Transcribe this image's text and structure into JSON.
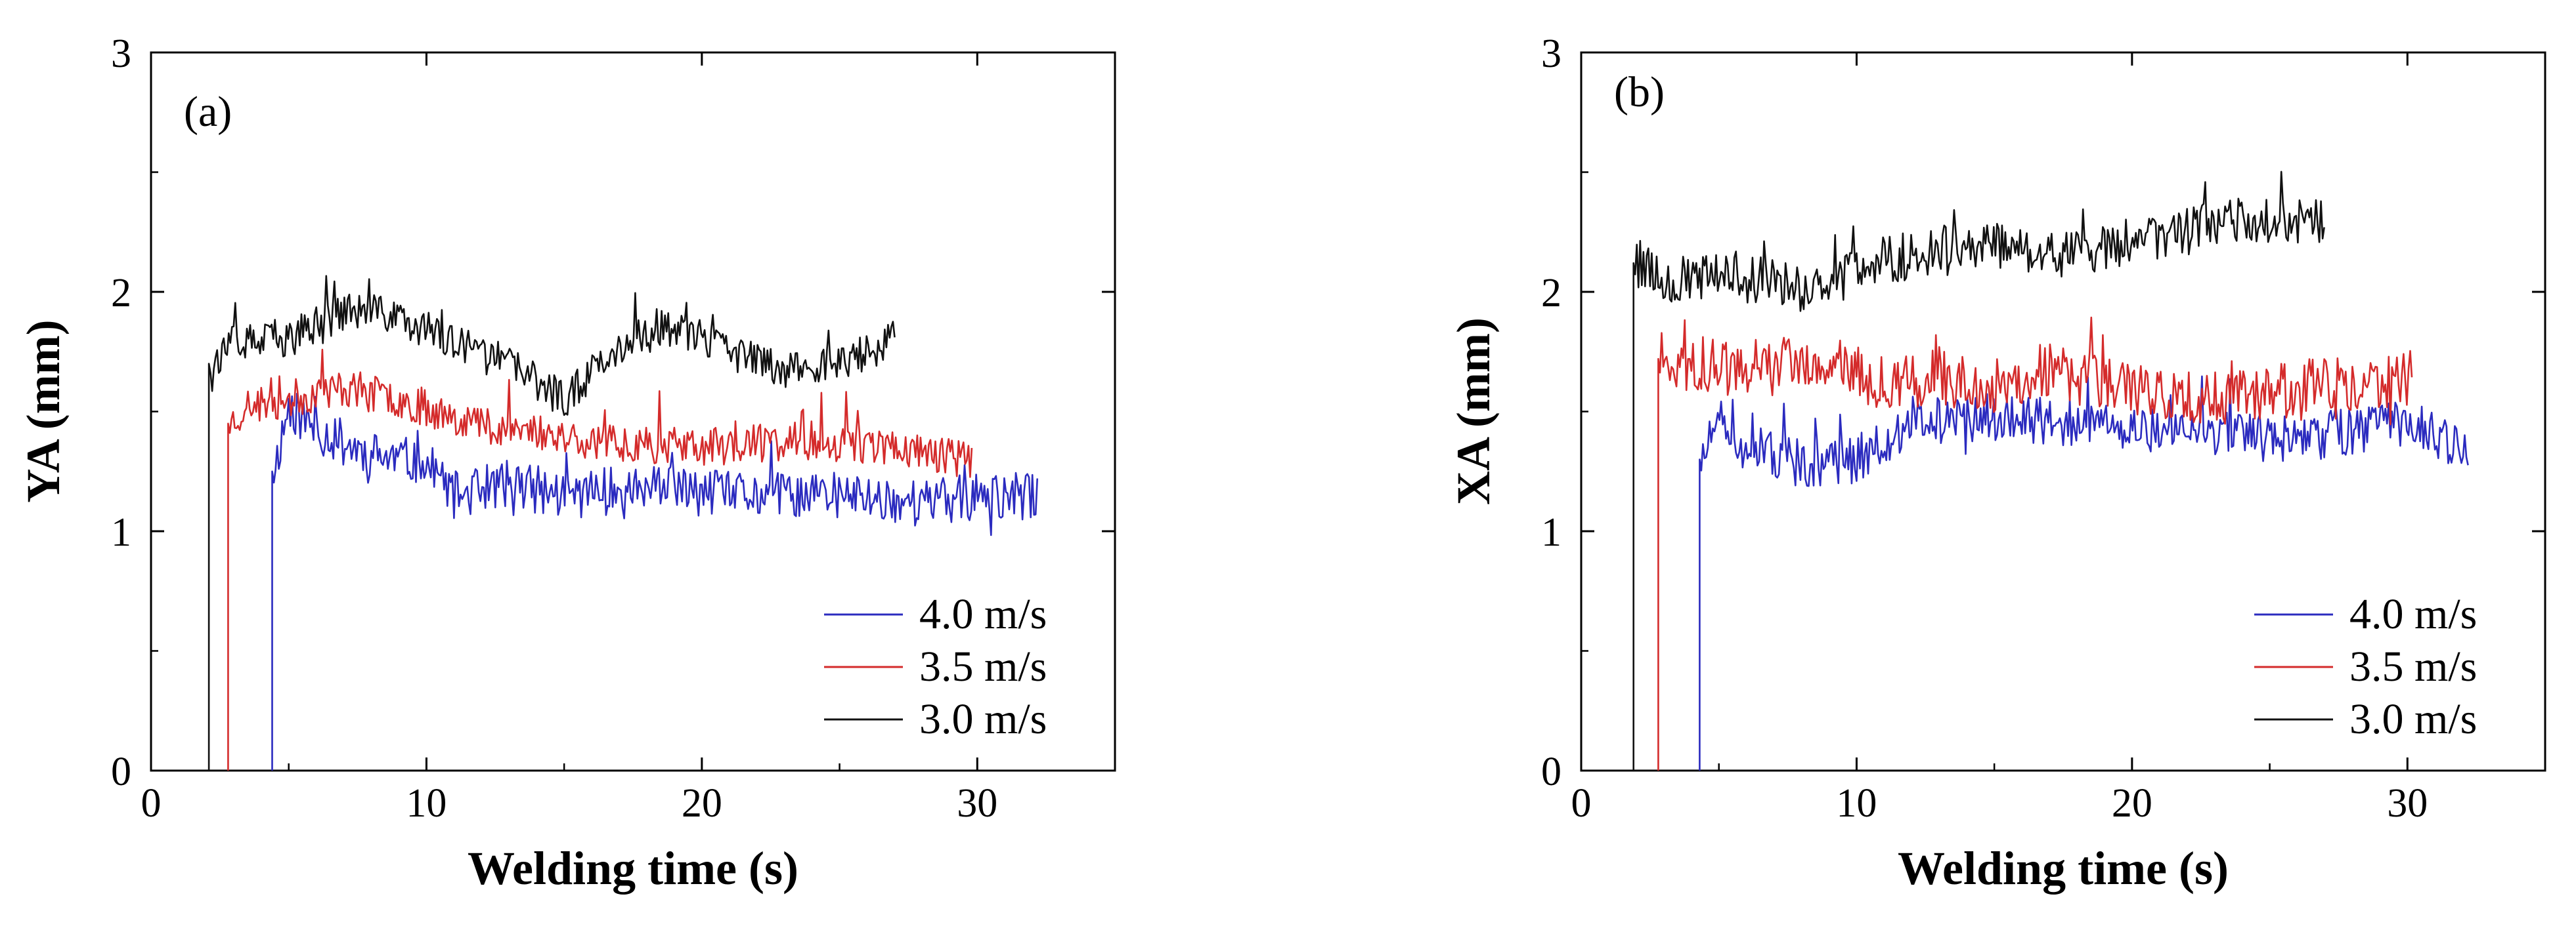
{
  "chart_data": [
    {
      "type": "line",
      "panel_label": "(a)",
      "xlabel": "Welding time (s)",
      "ylabel": "YA  (mm)",
      "xlim": [
        0,
        35
      ],
      "ylim": [
        0,
        3
      ],
      "xticks": [
        0,
        10,
        20,
        30
      ],
      "yticks": [
        0,
        1,
        2,
        3
      ],
      "grid": false,
      "legend_position": "lower-right",
      "series": [
        {
          "name": "4.0 m/s",
          "color": "#2b2bbf",
          "start": 4.4,
          "end": 32.2,
          "base": 1.2,
          "noise": 0.1,
          "seed": 11,
          "key": [
            [
              4.45,
              1.25
            ],
            [
              5,
              1.52
            ],
            [
              6,
              1.42
            ],
            [
              8,
              1.32
            ],
            [
              10,
              1.28
            ],
            [
              11,
              1.15
            ],
            [
              13,
              1.2
            ],
            [
              15,
              1.15
            ],
            [
              18,
              1.18
            ],
            [
              21,
              1.15
            ],
            [
              25,
              1.15
            ],
            [
              28,
              1.12
            ],
            [
              32.2,
              1.15
            ]
          ]
        },
        {
          "name": "3.5 m/s",
          "color": "#d42b2b",
          "start": 2.8,
          "end": 29.8,
          "base": 1.4,
          "noise": 0.08,
          "seed": 23,
          "key": [
            [
              2.85,
              1.45
            ],
            [
              3.5,
              1.52
            ],
            [
              5,
              1.55
            ],
            [
              7,
              1.6
            ],
            [
              9,
              1.55
            ],
            [
              12,
              1.45
            ],
            [
              16,
              1.38
            ],
            [
              20,
              1.35
            ],
            [
              24,
              1.38
            ],
            [
              27,
              1.35
            ],
            [
              29.8,
              1.3
            ]
          ]
        },
        {
          "name": "3.0 m/s",
          "color": "#111111",
          "start": 2.1,
          "end": 27.0,
          "base": 1.8,
          "noise": 0.08,
          "seed": 37,
          "key": [
            [
              2.15,
              1.7
            ],
            [
              3,
              1.78
            ],
            [
              5,
              1.8
            ],
            [
              7,
              1.92
            ],
            [
              9,
              1.9
            ],
            [
              11,
              1.78
            ],
            [
              13,
              1.7
            ],
            [
              15,
              1.55
            ],
            [
              17,
              1.78
            ],
            [
              19,
              1.85
            ],
            [
              21,
              1.75
            ],
            [
              23,
              1.68
            ],
            [
              25,
              1.7
            ],
            [
              27,
              1.8
            ]
          ]
        }
      ]
    },
    {
      "type": "line",
      "panel_label": "(b)",
      "xlabel": "Welding time (s)",
      "ylabel": "XA  (mm)",
      "xlim": [
        0,
        35
      ],
      "ylim": [
        0,
        3
      ],
      "xticks": [
        0,
        10,
        20,
        30
      ],
      "yticks": [
        0,
        1,
        2,
        3
      ],
      "grid": false,
      "legend_position": "lower-right",
      "series": [
        {
          "name": "4.0 m/s",
          "color": "#2b2bbf",
          "start": 4.3,
          "end": 32.2,
          "base": 1.35,
          "noise": 0.1,
          "seed": 51,
          "key": [
            [
              4.35,
              1.3
            ],
            [
              5,
              1.45
            ],
            [
              6,
              1.35
            ],
            [
              8,
              1.28
            ],
            [
              10,
              1.3
            ],
            [
              12,
              1.45
            ],
            [
              15,
              1.48
            ],
            [
              18,
              1.45
            ],
            [
              20,
              1.42
            ],
            [
              23,
              1.4
            ],
            [
              26,
              1.38
            ],
            [
              28,
              1.42
            ],
            [
              30,
              1.45
            ],
            [
              32.2,
              1.35
            ]
          ]
        },
        {
          "name": "3.5 m/s",
          "color": "#d42b2b",
          "start": 2.8,
          "end": 30.2,
          "base": 1.6,
          "noise": 0.12,
          "seed": 63,
          "key": [
            [
              2.85,
              1.72
            ],
            [
              4,
              1.7
            ],
            [
              6,
              1.68
            ],
            [
              9,
              1.7
            ],
            [
              11,
              1.62
            ],
            [
              13,
              1.65
            ],
            [
              15,
              1.6
            ],
            [
              17,
              1.68
            ],
            [
              19,
              1.62
            ],
            [
              22,
              1.55
            ],
            [
              25,
              1.58
            ],
            [
              28,
              1.62
            ],
            [
              30.2,
              1.65
            ]
          ]
        },
        {
          "name": "3.0 m/s",
          "color": "#111111",
          "start": 1.9,
          "end": 27.0,
          "base": 2.1,
          "noise": 0.1,
          "seed": 79,
          "key": [
            [
              1.95,
              2.12
            ],
            [
              3,
              2.05
            ],
            [
              5,
              2.05
            ],
            [
              7,
              2.05
            ],
            [
              9,
              1.98
            ],
            [
              10,
              2.12
            ],
            [
              12,
              2.15
            ],
            [
              14,
              2.2
            ],
            [
              16,
              2.18
            ],
            [
              18,
              2.15
            ],
            [
              20,
              2.2
            ],
            [
              22,
              2.25
            ],
            [
              24,
              2.3
            ],
            [
              26,
              2.3
            ],
            [
              27,
              2.3
            ]
          ]
        }
      ]
    }
  ]
}
